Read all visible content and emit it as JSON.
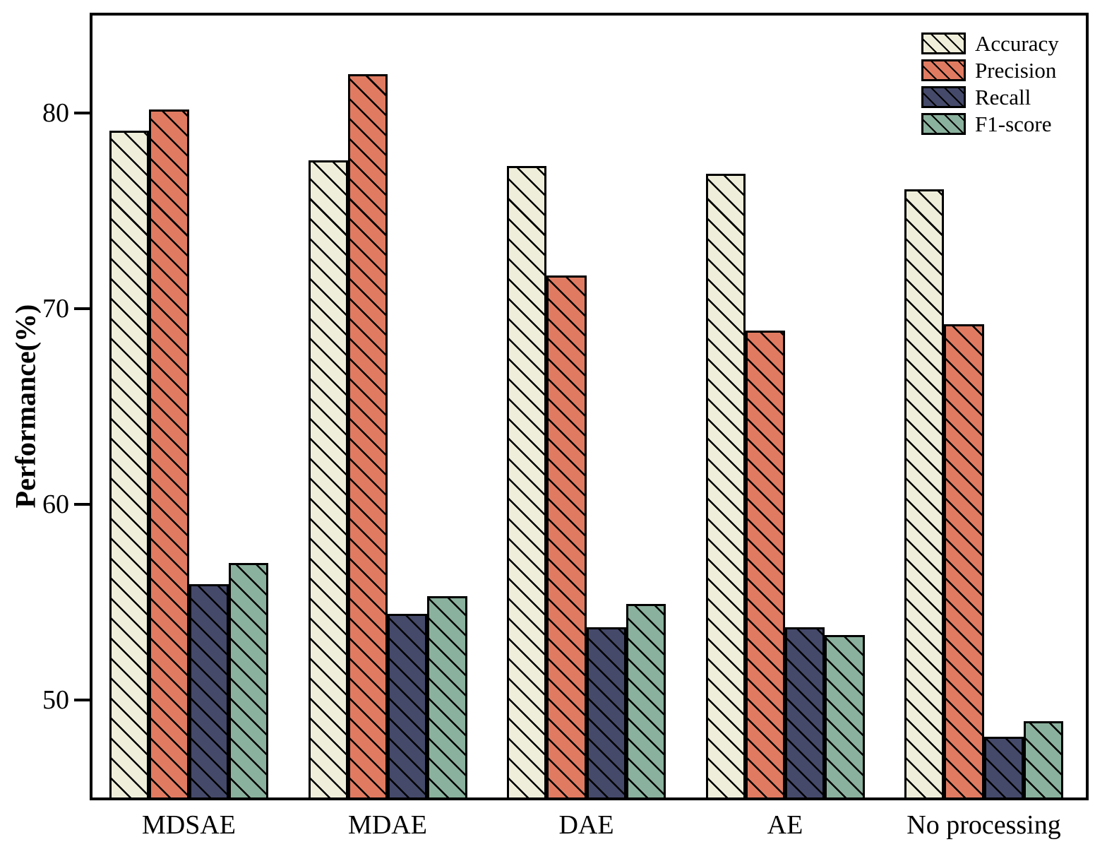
{
  "chart_data": {
    "type": "bar",
    "title": "",
    "xlabel": "",
    "ylabel": "Performance(%)",
    "ylim": [
      45,
      85
    ],
    "y_ticks": [
      50,
      60,
      70,
      80
    ],
    "grid": false,
    "legend_position": "top-right",
    "hatch": "diagonal-backslash",
    "edge_color": "#000000",
    "background_color": "#ffffff",
    "categories": [
      "MDSAE",
      "MDAE",
      "DAE",
      "AE",
      "No processing"
    ],
    "series": [
      {
        "name": "Accuracy",
        "color": "#EFEEDA",
        "values": [
          79.1,
          77.6,
          77.3,
          76.9,
          76.1
        ]
      },
      {
        "name": "Precision",
        "color": "#E07B61",
        "values": [
          80.2,
          82.0,
          71.7,
          68.9,
          69.2
        ]
      },
      {
        "name": "Recall",
        "color": "#454A6B",
        "values": [
          55.9,
          54.4,
          53.7,
          53.7,
          48.1
        ]
      },
      {
        "name": "F1-score",
        "color": "#8AB19D",
        "values": [
          57.0,
          55.3,
          54.9,
          53.3,
          48.9
        ]
      }
    ]
  }
}
